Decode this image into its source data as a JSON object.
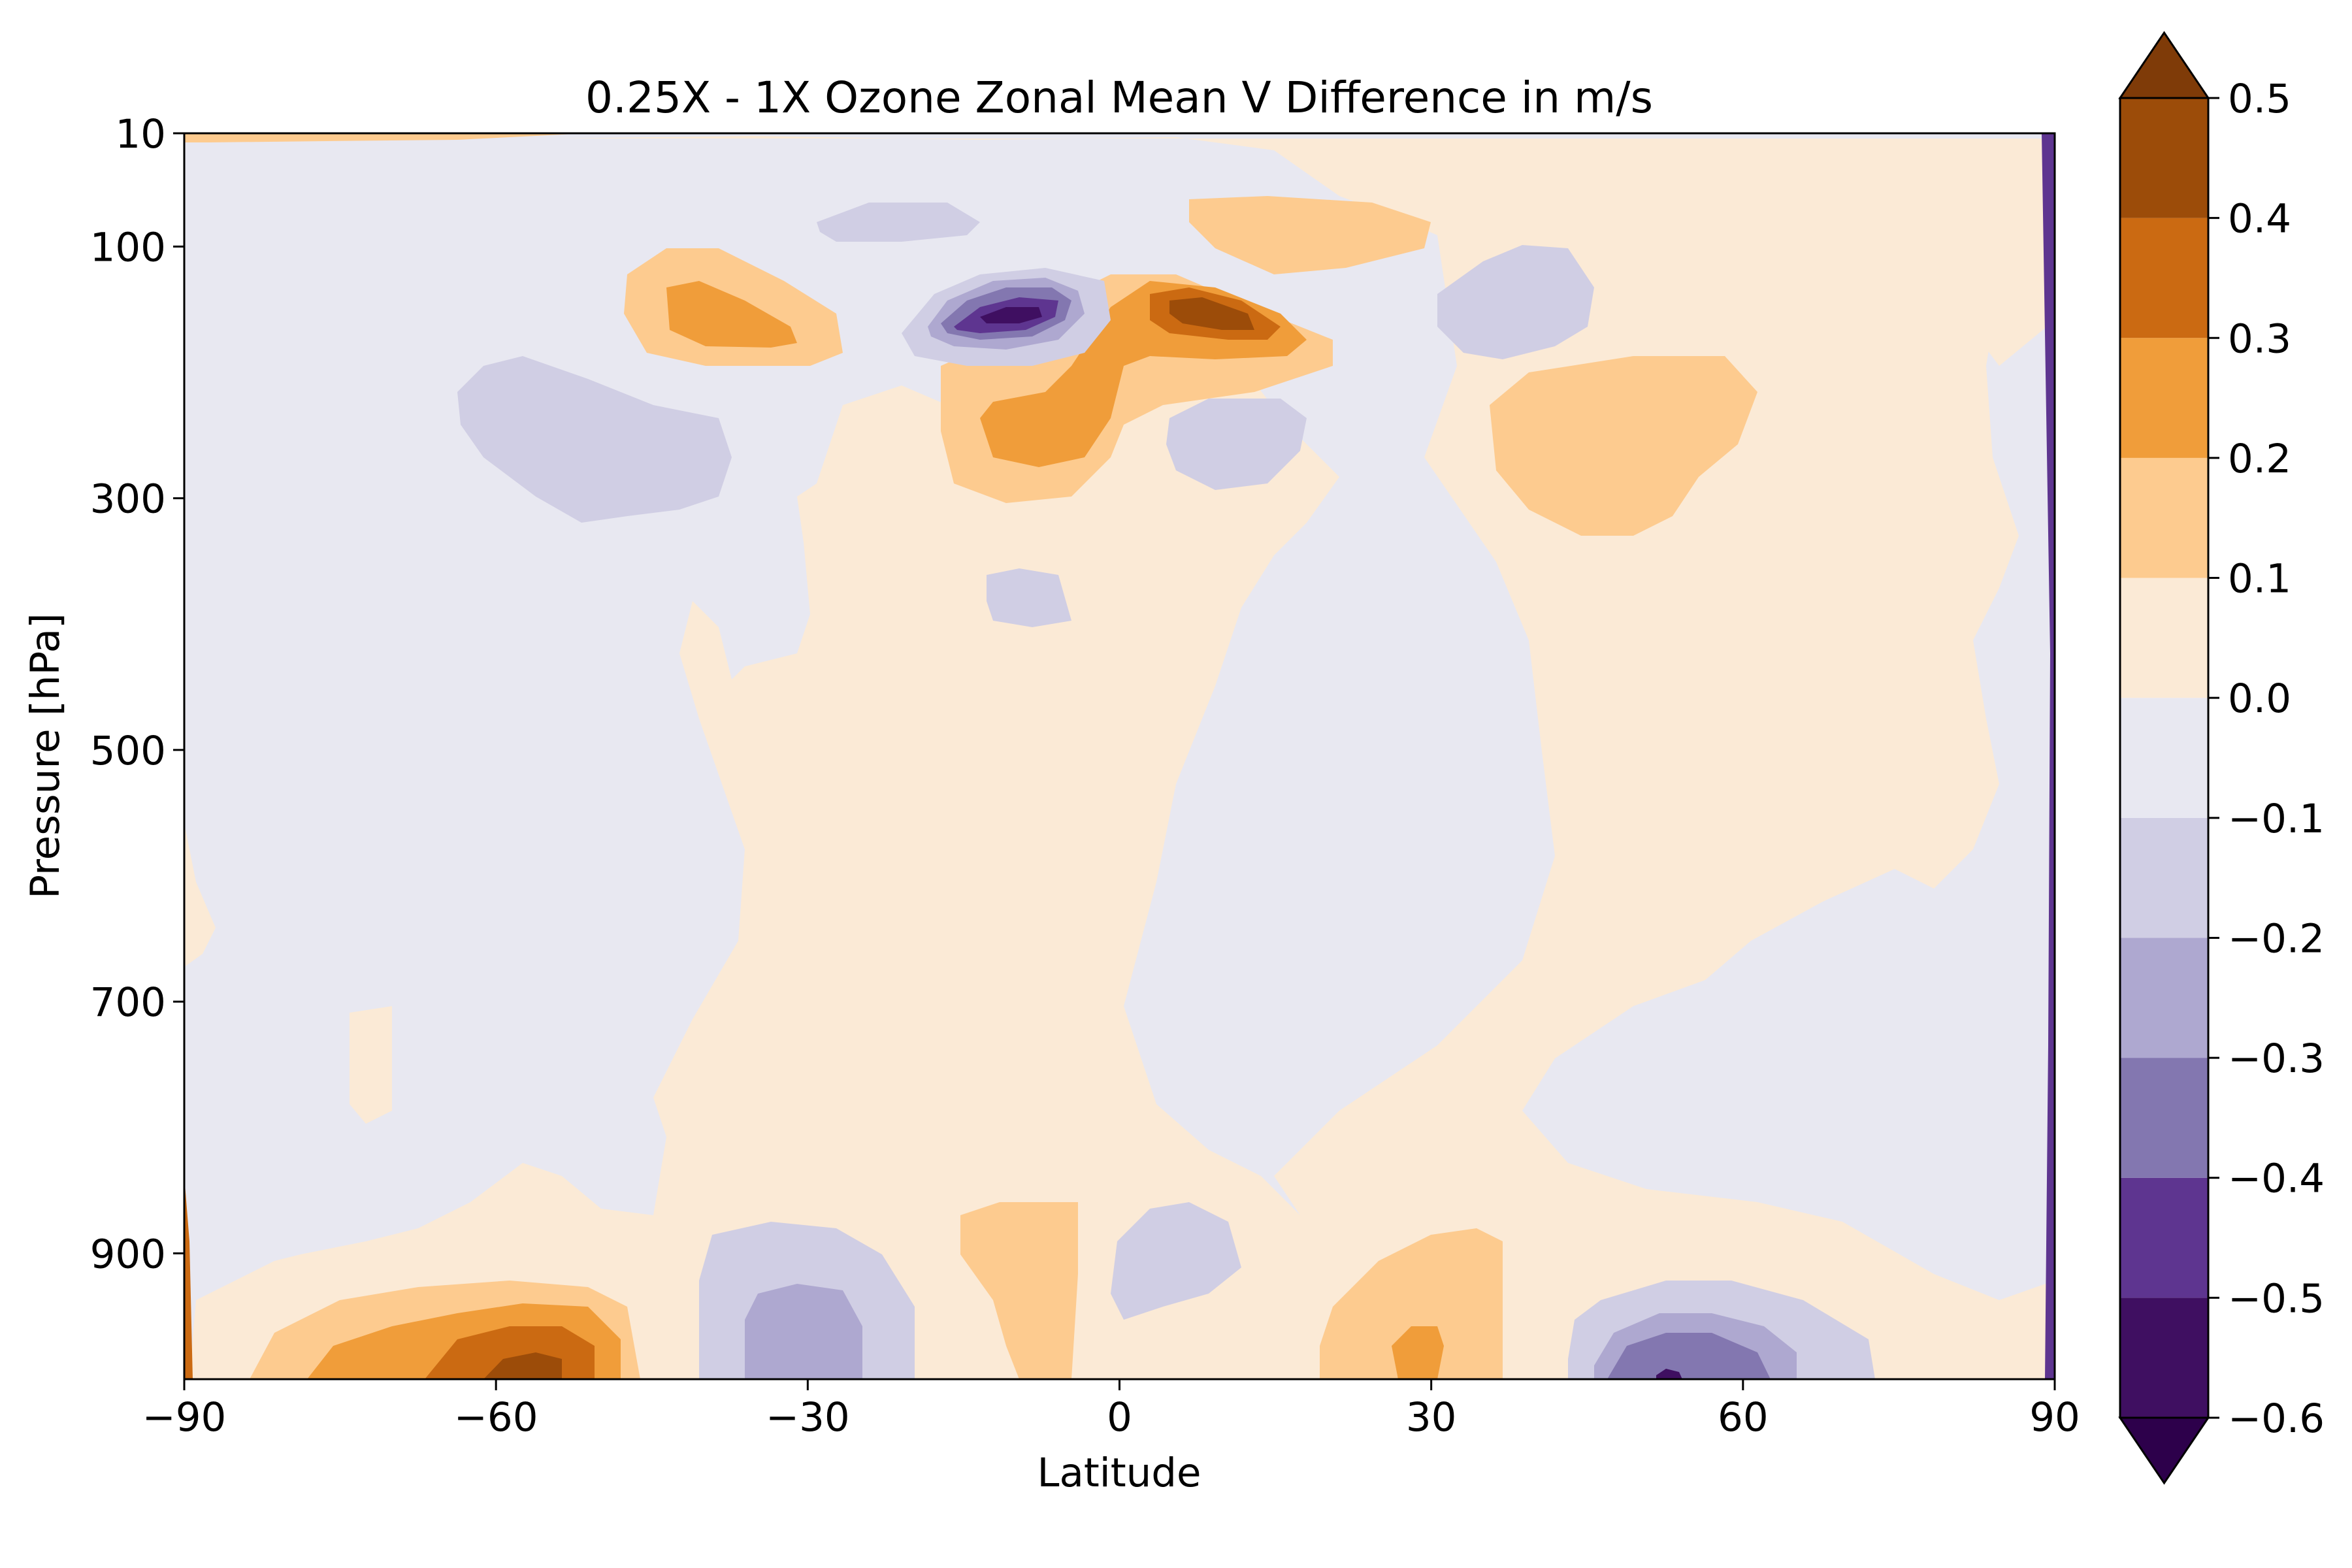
{
  "chart_data": {
    "type": "contour",
    "title": "0.25X - 1X Ozone Zonal Mean V Difference in m/s",
    "xlabel": "Latitude",
    "ylabel": "Pressure [hPa]",
    "xlim": [
      -90,
      90
    ],
    "ylim": [
      1000,
      10
    ],
    "x_ticks": [
      -90,
      -60,
      -30,
      0,
      30,
      60,
      90
    ],
    "x_tick_labels": [
      "−90",
      "−60",
      "−30",
      "0",
      "30",
      "60",
      "90"
    ],
    "y_ticks": [
      10,
      100,
      300,
      500,
      700,
      900
    ],
    "y_tick_labels": [
      "10",
      "100",
      "300",
      "500",
      "700",
      "900"
    ],
    "colorbar": {
      "levels": [
        -0.6,
        -0.5,
        -0.4,
        -0.3,
        -0.2,
        -0.1,
        0.0,
        0.1,
        0.2,
        0.3,
        0.4,
        0.5
      ],
      "tick_labels": [
        "−0.6",
        "−0.5",
        "−0.4",
        "−0.3",
        "−0.2",
        "−0.1",
        "0.0",
        "0.1",
        "0.2",
        "0.3",
        "0.4",
        "0.5"
      ],
      "extend": "both",
      "colors": [
        "#2d004b",
        "#3f0f61",
        "#5e3590",
        "#8377b0",
        "#aea8d0",
        "#d0cee4",
        "#e8e8f1",
        "#fbead6",
        "#fdcb8f",
        "#f09d3a",
        "#cb6a12",
        "#9c4c09",
        "#7f3b08"
      ]
    },
    "features": [
      {
        "name": "Upper-stratosphere SH positive band",
        "lat": -65,
        "p": 15,
        "value": 0.3
      },
      {
        "name": "Negative core near -8 lat",
        "lat": -8,
        "p": 140,
        "value": -0.55
      },
      {
        "name": "Positive core near 8 lat",
        "lat": 8,
        "p": 140,
        "value": 0.45
      },
      {
        "name": "Positive lobe",
        "lat": -38,
        "p": 140,
        "value": 0.25
      },
      {
        "name": "Positive lobe near 0",
        "lat": -5,
        "p": 250,
        "value": 0.25
      },
      {
        "name": "Negative lobe",
        "lat": -45,
        "p": 240,
        "value": -0.15
      },
      {
        "name": "Negative lobe",
        "lat": 12,
        "p": 260,
        "value": -0.15
      },
      {
        "name": "Negative lobe",
        "lat": 36,
        "p": 120,
        "value": -0.15
      },
      {
        "name": "Positive lobe",
        "lat": 50,
        "p": 250,
        "value": 0.15
      },
      {
        "name": "Negative lobe",
        "lat": -20,
        "p": 60,
        "value": -0.15
      },
      {
        "name": "Positive lobe",
        "lat": 15,
        "p": 70,
        "value": 0.15
      },
      {
        "name": "Surface positive core",
        "lat": -57,
        "p": 990,
        "value": 0.45
      },
      {
        "name": "Surface negative core",
        "lat": -30,
        "p": 980,
        "value": -0.25
      },
      {
        "name": "Surface positive",
        "lat": -9,
        "p": 930,
        "value": 0.15
      },
      {
        "name": "Surface negative",
        "lat": 6,
        "p": 930,
        "value": -0.15
      },
      {
        "name": "Surface positive",
        "lat": 29,
        "p": 980,
        "value": 0.25
      },
      {
        "name": "Surface negative core",
        "lat": 53,
        "p": 990,
        "value": -0.4
      }
    ]
  }
}
